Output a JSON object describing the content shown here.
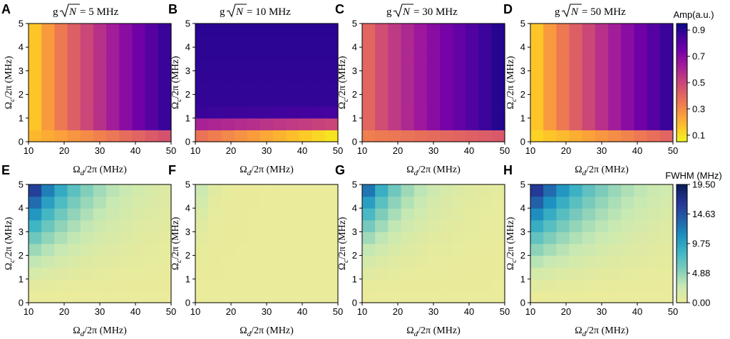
{
  "figure": {
    "cells": {
      "nx": 11,
      "ny": 10
    },
    "amp_colorbar": {
      "title": "Amp(a.u.)",
      "ticks": [
        "0.1",
        "0.3",
        "0.5",
        "0.7",
        "0.9"
      ],
      "tick_values": [
        0.1,
        0.3,
        0.5,
        0.7,
        0.9
      ],
      "min": 0.05,
      "max": 0.95,
      "colormap": "plasma_r"
    },
    "fwhm_colorbar": {
      "title": "FWHM (MHz)",
      "ticks": [
        "0.00",
        "4.88",
        "9.75",
        "14.63",
        "19.50"
      ],
      "tick_values": [
        0,
        4.88,
        9.75,
        14.63,
        19.5
      ],
      "min": 0,
      "max": 19.5,
      "colormap": "YlGnBu"
    }
  },
  "chart_data": [
    {
      "panel": "A",
      "type": "heatmap",
      "title_prefix": "g",
      "title_suffix": " = 5 MHz",
      "xlabel": "Ωd/2π (MHz)",
      "ylabel": "Ωc/2π (MHz)",
      "xlim": [
        10,
        50
      ],
      "ylim": [
        0,
        5
      ],
      "x_ticks": [
        "10",
        "20",
        "30",
        "40",
        "50"
      ],
      "y_ticks": [
        "0",
        "1",
        "2",
        "3",
        "4",
        "5"
      ],
      "quantity": "Amp (a.u.)",
      "model": {
        "kind": "amp",
        "low_band_limit": 0.5,
        "x_min": 10,
        "x_max": 50,
        "a_start": 0.08,
        "a_end": 0.9,
        "low_start": 0.18,
        "low_end": 0.48
      }
    },
    {
      "panel": "B",
      "type": "heatmap",
      "title_prefix": "g",
      "title_suffix": " = 10 MHz",
      "xlabel": "Ωd/2π (MHz)",
      "ylabel": "Ωc/2π (MHz)",
      "xlim": [
        10,
        50
      ],
      "ylim": [
        0,
        5
      ],
      "x_ticks": [
        "10",
        "20",
        "30",
        "40",
        "50"
      ],
      "y_ticks": [
        "0",
        "1",
        "2",
        "3",
        "4",
        "5"
      ],
      "quantity": "Amp (a.u.)",
      "model": {
        "kind": "amp_b",
        "low_band": [
          0,
          0.5
        ],
        "band2": [
          0.5,
          1.0
        ],
        "high_base": 0.88
      }
    },
    {
      "panel": "C",
      "type": "heatmap",
      "title_prefix": "g",
      "title_suffix": " = 30 MHz",
      "xlabel": "Ωd/2π (MHz)",
      "ylabel": "Ωc/2π (MHz)",
      "xlim": [
        10,
        50
      ],
      "ylim": [
        0,
        5
      ],
      "x_ticks": [
        "10",
        "20",
        "30",
        "40",
        "50"
      ],
      "y_ticks": [
        "0",
        "1",
        "2",
        "3",
        "4",
        "5"
      ],
      "quantity": "Amp (a.u.)",
      "model": {
        "kind": "amp",
        "low_band_limit": 0.5,
        "x_min": 10,
        "x_max": 50,
        "a_start": 0.35,
        "a_end": 0.93,
        "low_start": 0.33,
        "low_end": 0.45
      }
    },
    {
      "panel": "D",
      "type": "heatmap",
      "title_prefix": "g",
      "title_suffix": " = 50 MHz",
      "xlabel": "Ωd/2π (MHz)",
      "ylabel": "Ωc/2π (MHz)",
      "xlim": [
        10,
        50
      ],
      "ylim": [
        0,
        5
      ],
      "x_ticks": [
        "10",
        "20",
        "30",
        "40",
        "50"
      ],
      "y_ticks": [
        "0",
        "1",
        "2",
        "3",
        "4",
        "5"
      ],
      "quantity": "Amp (a.u.)",
      "model": {
        "kind": "amp",
        "low_band_limit": 0.5,
        "x_min": 10,
        "x_max": 50,
        "a_start": 0.08,
        "a_end": 0.9,
        "low_start": 0.12,
        "low_end": 0.42
      }
    },
    {
      "panel": "E",
      "type": "heatmap",
      "xlabel": "Ωd/2π (MHz)",
      "ylabel": "Ωc/2π (MHz)",
      "xlim": [
        10,
        50
      ],
      "ylim": [
        0,
        5
      ],
      "x_ticks": [
        "10",
        "20",
        "30",
        "40",
        "50"
      ],
      "y_ticks": [
        "0",
        "1",
        "2",
        "3",
        "4",
        "5"
      ],
      "quantity": "FWHM (MHz)",
      "model": {
        "kind": "fwhm",
        "peak": 19.5,
        "y_pow": 1.6,
        "x_decay": 0.075
      }
    },
    {
      "panel": "F",
      "type": "heatmap",
      "xlabel": "Ωd/2π (MHz)",
      "ylabel": "Ωc/2π (MHz)",
      "xlim": [
        10,
        50
      ],
      "ylim": [
        0,
        5
      ],
      "x_ticks": [
        "10",
        "20",
        "30",
        "40",
        "50"
      ],
      "y_ticks": [
        "0",
        "1",
        "2",
        "3",
        "4",
        "5"
      ],
      "quantity": "FWHM (MHz)",
      "model": {
        "kind": "fwhm",
        "peak": 5.0,
        "y_pow": 3.0,
        "x_decay": 0.35
      }
    },
    {
      "panel": "G",
      "type": "heatmap",
      "xlabel": "Ωd/2π (MHz)",
      "ylabel": "Ωc/2π (MHz)",
      "xlim": [
        10,
        50
      ],
      "ylim": [
        0,
        5
      ],
      "x_ticks": [
        "10",
        "20",
        "30",
        "40",
        "50"
      ],
      "y_ticks": [
        "0",
        "1",
        "2",
        "3",
        "4",
        "5"
      ],
      "quantity": "FWHM (MHz)",
      "model": {
        "kind": "fwhm",
        "peak": 16.5,
        "y_pow": 1.9,
        "x_decay": 0.1
      }
    },
    {
      "panel": "H",
      "type": "heatmap",
      "xlabel": "Ωd/2π (MHz)",
      "ylabel": "Ωc/2π (MHz)",
      "xlim": [
        10,
        50
      ],
      "ylim": [
        0,
        5
      ],
      "x_ticks": [
        "10",
        "20",
        "30",
        "40",
        "50"
      ],
      "y_ticks": [
        "0",
        "1",
        "2",
        "3",
        "4",
        "5"
      ],
      "quantity": "FWHM (MHz)",
      "model": {
        "kind": "fwhm",
        "peak": 19.5,
        "y_pow": 1.5,
        "x_decay": 0.06
      }
    }
  ]
}
